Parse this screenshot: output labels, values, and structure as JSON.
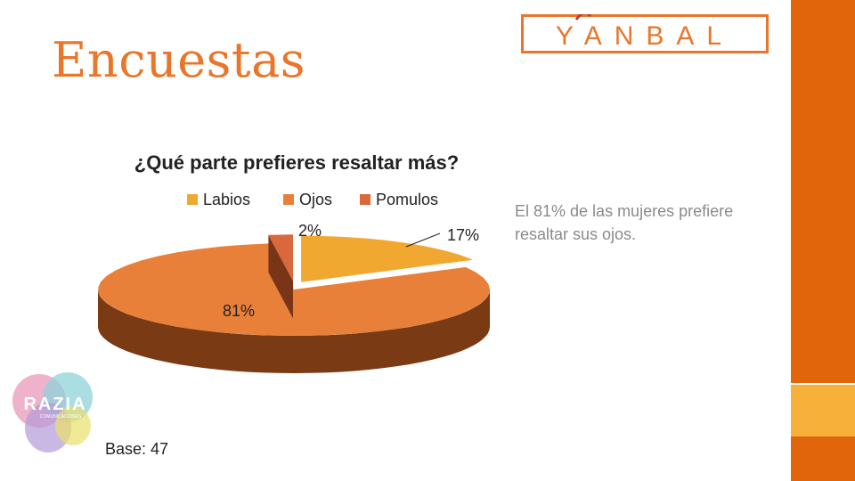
{
  "slide": {
    "title": "Encuestas",
    "annotation": "El 81% de las mujeres prefiere resaltar sus ojos.",
    "base": "Base: 47"
  },
  "logos": {
    "yanbal": "YANBAL",
    "razia": "RAZIA",
    "razia_sub": "COMUNICACIONES"
  },
  "colors": {
    "accent": "#E8762B",
    "bar": "#E0650B",
    "bar_accent": "#F7B13A",
    "labios": "#F0A830",
    "ojos": "#E8803A",
    "pomulos": "#D9683C"
  },
  "chart_data": {
    "type": "pie",
    "title": "¿Qué parte prefieres resaltar más?",
    "legend_position": "top",
    "categories": [
      "Labios",
      "Ojos",
      "Pomulos"
    ],
    "values": [
      17,
      81,
      2
    ],
    "data_labels": [
      "17%",
      "81%",
      "2%"
    ],
    "style": "3d-exploded"
  }
}
